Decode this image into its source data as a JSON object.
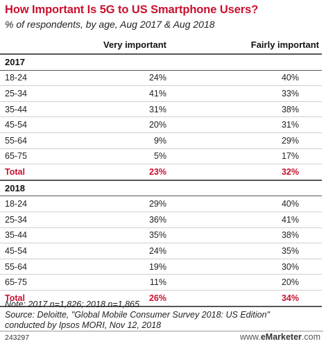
{
  "header": {
    "title": "How Important Is 5G to US Smartphone Users?",
    "subtitle": "% of respondents, by age, Aug 2017 & Aug 2018"
  },
  "table": {
    "columns": [
      "",
      "Very important",
      "Fairly important"
    ],
    "sections": [
      {
        "label": "2017",
        "rows": [
          {
            "label": "18-24",
            "values": [
              "24%",
              "40%"
            ]
          },
          {
            "label": "25-34",
            "values": [
              "41%",
              "33%"
            ]
          },
          {
            "label": "35-44",
            "values": [
              "31%",
              "38%"
            ]
          },
          {
            "label": "45-54",
            "values": [
              "20%",
              "31%"
            ]
          },
          {
            "label": "55-64",
            "values": [
              "9%",
              "29%"
            ]
          },
          {
            "label": "65-75",
            "values": [
              "5%",
              "17%"
            ]
          }
        ],
        "total": {
          "label": "Total",
          "values": [
            "23%",
            "32%"
          ]
        }
      },
      {
        "label": "2018",
        "rows": [
          {
            "label": "18-24",
            "values": [
              "29%",
              "40%"
            ]
          },
          {
            "label": "25-34",
            "values": [
              "36%",
              "41%"
            ]
          },
          {
            "label": "35-44",
            "values": [
              "35%",
              "38%"
            ]
          },
          {
            "label": "45-54",
            "values": [
              "24%",
              "35%"
            ]
          },
          {
            "label": "55-64",
            "values": [
              "19%",
              "30%"
            ]
          },
          {
            "label": "65-75",
            "values": [
              "11%",
              "20%"
            ]
          }
        ],
        "total": {
          "label": "Total",
          "values": [
            "26%",
            "34%"
          ]
        }
      }
    ]
  },
  "notes": {
    "line1": "Note: 2017 n=1,826; 2018 n=1,865",
    "line2": "Source: Deloitte, \"Global Mobile Consumer Survey 2018: US Edition\"",
    "line3": "conducted by Ipsos MORI, Nov 12, 2018"
  },
  "footer": {
    "id": "243297",
    "brand_prefix": "www.",
    "brand_name": "eMarketer",
    "brand_suffix": ".com"
  },
  "colors": {
    "accent": "#c8102e",
    "text": "#222222"
  },
  "chart_data": {
    "type": "table",
    "title": "How Important Is 5G to US Smartphone Users?",
    "subtitle": "% of respondents, by age, Aug 2017 & Aug 2018",
    "columns": [
      "Very important",
      "Fairly important"
    ],
    "categories": [
      "18-24",
      "25-34",
      "35-44",
      "45-54",
      "55-64",
      "65-75",
      "Total"
    ],
    "series": [
      {
        "name": "2017 Very important",
        "values": [
          24,
          41,
          31,
          20,
          9,
          5,
          23
        ]
      },
      {
        "name": "2017 Fairly important",
        "values": [
          40,
          33,
          38,
          31,
          29,
          17,
          32
        ]
      },
      {
        "name": "2018 Very important",
        "values": [
          29,
          36,
          35,
          24,
          19,
          11,
          26
        ]
      },
      {
        "name": "2018 Fairly important",
        "values": [
          40,
          41,
          38,
          35,
          30,
          20,
          34
        ]
      }
    ]
  }
}
